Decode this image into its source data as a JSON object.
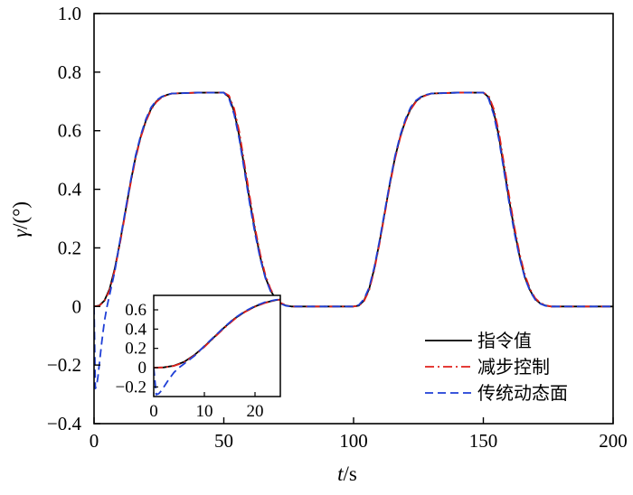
{
  "chart_data": {
    "type": "line",
    "title": "",
    "xlabel": {
      "italic": "t",
      "rest": "/s"
    },
    "ylabel": {
      "italic": "γ",
      "rest": "/(°)"
    },
    "xlim": [
      0,
      200
    ],
    "ylim": [
      -0.4,
      1.0
    ],
    "xticks": [
      "0",
      "50",
      "100",
      "150",
      "200"
    ],
    "yticks": [
      "−0.4",
      "−0.2",
      "0",
      "0.2",
      "0.4",
      "0.6",
      "0.8",
      "1.0"
    ],
    "grid": false,
    "legend": {
      "placement": "bottom-right"
    },
    "series": [
      {
        "name": "指令值",
        "color": "#000000",
        "dash": "solid",
        "x": [
          0,
          2,
          4,
          6,
          8,
          10,
          12,
          14,
          16,
          18,
          20,
          22,
          24,
          26,
          28,
          30,
          40,
          50,
          52,
          54,
          56,
          58,
          60,
          62,
          64,
          66,
          68,
          70,
          72,
          74,
          76,
          80,
          100,
          102,
          104,
          106,
          108,
          110,
          112,
          114,
          116,
          118,
          120,
          122,
          124,
          126,
          128,
          130,
          140,
          150,
          152,
          154,
          156,
          158,
          160,
          162,
          164,
          166,
          168,
          170,
          172,
          174,
          176,
          180,
          200
        ],
        "y": [
          0,
          0.003,
          0.02,
          0.06,
          0.13,
          0.22,
          0.32,
          0.42,
          0.51,
          0.58,
          0.635,
          0.675,
          0.7,
          0.715,
          0.722,
          0.727,
          0.73,
          0.73,
          0.715,
          0.665,
          0.58,
          0.47,
          0.36,
          0.26,
          0.17,
          0.1,
          0.055,
          0.025,
          0.01,
          0.003,
          0,
          0,
          0,
          0.003,
          0.02,
          0.06,
          0.13,
          0.22,
          0.32,
          0.42,
          0.51,
          0.58,
          0.635,
          0.675,
          0.7,
          0.715,
          0.722,
          0.727,
          0.73,
          0.73,
          0.715,
          0.665,
          0.58,
          0.47,
          0.36,
          0.26,
          0.17,
          0.1,
          0.055,
          0.025,
          0.01,
          0.003,
          0,
          0,
          0
        ]
      },
      {
        "name": "减步控制",
        "color": "#e0201b",
        "dash": "dashdot",
        "x": [
          0,
          2,
          4,
          6,
          8,
          10,
          12,
          14,
          16,
          18,
          20,
          22,
          24,
          26,
          28,
          30,
          40,
          50,
          52,
          54,
          56,
          58,
          60,
          62,
          64,
          66,
          68,
          70,
          72,
          74,
          76,
          80,
          100,
          102,
          104,
          106,
          108,
          110,
          112,
          114,
          116,
          118,
          120,
          122,
          124,
          126,
          128,
          130,
          140,
          150,
          152,
          154,
          156,
          158,
          160,
          162,
          164,
          166,
          168,
          170,
          172,
          174,
          176,
          180,
          200
        ],
        "y": [
          0,
          0.002,
          0.018,
          0.055,
          0.125,
          0.215,
          0.315,
          0.415,
          0.505,
          0.577,
          0.632,
          0.672,
          0.698,
          0.713,
          0.721,
          0.727,
          0.73,
          0.73,
          0.72,
          0.675,
          0.595,
          0.485,
          0.375,
          0.27,
          0.18,
          0.108,
          0.06,
          0.028,
          0.012,
          0.004,
          0,
          0,
          0,
          0.002,
          0.018,
          0.055,
          0.125,
          0.215,
          0.315,
          0.415,
          0.505,
          0.577,
          0.632,
          0.672,
          0.698,
          0.713,
          0.721,
          0.727,
          0.73,
          0.73,
          0.72,
          0.675,
          0.595,
          0.485,
          0.375,
          0.27,
          0.18,
          0.108,
          0.06,
          0.028,
          0.012,
          0.004,
          0,
          0,
          0
        ]
      },
      {
        "name": "传统动态面",
        "color": "#1f3fd6",
        "dash": "dashed",
        "x": [
          0,
          0.5,
          1,
          1.5,
          2,
          3,
          4,
          5,
          6,
          8,
          10,
          12,
          14,
          16,
          18,
          20,
          22,
          24,
          26,
          28,
          30,
          40,
          50,
          52,
          54,
          56,
          58,
          60,
          62,
          64,
          66,
          68,
          70,
          72,
          74,
          76,
          80,
          100,
          102,
          104,
          106,
          108,
          110,
          112,
          114,
          116,
          118,
          120,
          122,
          124,
          126,
          128,
          130,
          140,
          150,
          152,
          154,
          156,
          158,
          160,
          162,
          164,
          166,
          168,
          170,
          172,
          174,
          176,
          180,
          200
        ],
        "y": [
          0,
          -0.28,
          -0.27,
          -0.24,
          -0.2,
          -0.12,
          -0.05,
          0.0,
          0.04,
          0.12,
          0.225,
          0.325,
          0.425,
          0.515,
          0.585,
          0.64,
          0.68,
          0.703,
          0.716,
          0.723,
          0.727,
          0.73,
          0.73,
          0.71,
          0.655,
          0.57,
          0.46,
          0.35,
          0.25,
          0.165,
          0.097,
          0.052,
          0.023,
          0.009,
          0.002,
          0,
          0,
          0,
          0.005,
          0.025,
          0.065,
          0.135,
          0.225,
          0.325,
          0.425,
          0.515,
          0.585,
          0.64,
          0.68,
          0.703,
          0.716,
          0.723,
          0.727,
          0.73,
          0.73,
          0.71,
          0.655,
          0.57,
          0.46,
          0.35,
          0.25,
          0.165,
          0.097,
          0.052,
          0.023,
          0.009,
          0.002,
          0,
          0,
          0
        ]
      }
    ],
    "inset": {
      "xlim": [
        0,
        25
      ],
      "ylim": [
        -0.3,
        0.75
      ],
      "xticks": [
        "0",
        "10",
        "20"
      ],
      "yticks": [
        "−0.2",
        "0",
        "0.2",
        "0.4",
        "0.6"
      ]
    }
  }
}
